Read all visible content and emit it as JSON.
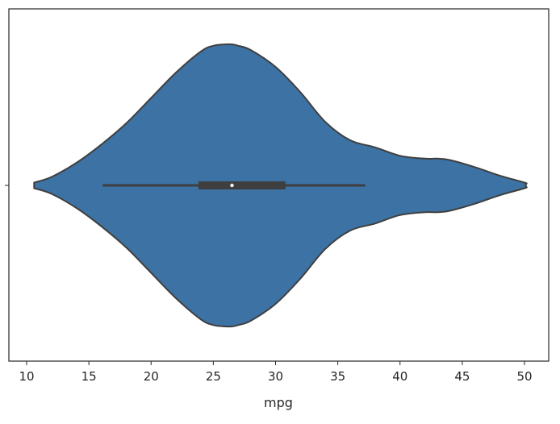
{
  "chart_data": {
    "type": "violin",
    "orientation": "horizontal",
    "title": "",
    "xlabel": "mpg",
    "ylabel": "",
    "xlim": [
      9,
      52
    ],
    "x_ticks": [
      10,
      15,
      20,
      25,
      30,
      35,
      40,
      45,
      50
    ],
    "x_tick_labels": [
      "10",
      "15",
      "20",
      "25",
      "30",
      "35",
      "40",
      "45",
      "50"
    ],
    "grid": false,
    "legend": "none",
    "fill_color": "#3d72a4",
    "edge_color": "#3f3f3f",
    "box_color": "#3f3f3f",
    "median_color": "#ffffff",
    "series": [
      {
        "density_profile": {
          "x": [
            10.6,
            12,
            14,
            16,
            18,
            20,
            22,
            24,
            25,
            26,
            26.5,
            27,
            28,
            30,
            32,
            34,
            36,
            38,
            40,
            42,
            43,
            44,
            46,
            48,
            50,
            50.1
          ],
          "half_width": [
            0.02,
            0.06,
            0.16,
            0.29,
            0.44,
            0.62,
            0.8,
            0.95,
            0.99,
            1.0,
            1.0,
            0.99,
            0.96,
            0.84,
            0.66,
            0.45,
            0.32,
            0.27,
            0.21,
            0.19,
            0.19,
            0.18,
            0.13,
            0.07,
            0.02,
            0.01
          ]
        },
        "min": 10.6,
        "q1": 23.8,
        "median": 26.5,
        "q3": 30.8,
        "whisker_low": 16.1,
        "whisker_high": 37.2,
        "max": 50.1
      }
    ]
  }
}
